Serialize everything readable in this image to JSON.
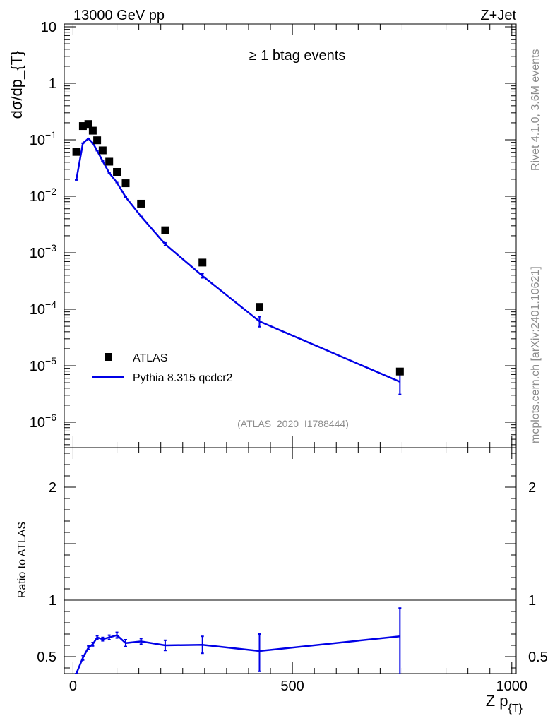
{
  "header": {
    "left": "13000 GeV pp",
    "right": "Z+Jet"
  },
  "side_texts": {
    "rivet": "Rivet 4.1.0,  3.6M events",
    "mcplots": "mcplots.cern.ch [arXiv:2401.10621]"
  },
  "main": {
    "annotation": "≥ 1 btag events",
    "analysis_label": "(ATLAS_2020_I1788444)",
    "ylabel": "dσ/dp_{T}",
    "ytick_labels": [
      {
        "base": "10",
        "exp": "",
        "value": 10
      },
      {
        "base": "1",
        "exp": "",
        "value": 1
      },
      {
        "base": "10",
        "exp": "−1",
        "value": 0.1
      },
      {
        "base": "10",
        "exp": "−2",
        "value": 0.01
      },
      {
        "base": "10",
        "exp": "−3",
        "value": 0.001
      },
      {
        "base": "10",
        "exp": "−4",
        "value": 0.0001
      },
      {
        "base": "10",
        "exp": "−5",
        "value": 1e-05
      },
      {
        "base": "10",
        "exp": "−6",
        "value": 1e-06
      }
    ],
    "legend": {
      "data_label": "ATLAS",
      "mc_label": "Pythia 8.315 qcdcr2",
      "mc_color": "#0000e6"
    }
  },
  "ratio": {
    "ylabel": "Ratio to ATLAS",
    "ytick_labels": [
      {
        "label": "0.5",
        "value": 0.5
      },
      {
        "label": "1",
        "value": 1
      },
      {
        "label": "2",
        "value": 2
      }
    ]
  },
  "xaxis": {
    "label_main": "Z p",
    "label_sub": "{T}",
    "tick_labels": [
      {
        "label": "0",
        "value": 0
      },
      {
        "label": "500",
        "value": 500
      },
      {
        "label": "1000",
        "value": 1000
      }
    ]
  },
  "chart_data": {
    "type": "scatter",
    "xlim": [
      -20,
      1010
    ],
    "main_ylim_log10": [
      -6.45,
      1.05
    ],
    "ratio_ylim": [
      0.35,
      2.35
    ],
    "series": [
      {
        "name": "ATLAS",
        "kind": "data",
        "x": [
          7.5,
          22.5,
          35,
          45,
          55,
          67.5,
          82.5,
          100,
          120,
          155,
          210,
          295,
          425,
          745
        ],
        "y": [
          0.061,
          0.175,
          0.19,
          0.145,
          0.098,
          0.065,
          0.041,
          0.027,
          0.017,
          0.0074,
          0.0025,
          0.00067,
          0.00011,
          7.9e-06
        ]
      },
      {
        "name": "Pythia 8.315 qcdcr2",
        "kind": "mc",
        "x": [
          7.5,
          22.5,
          35,
          45,
          55,
          67.5,
          82.5,
          100,
          120,
          155,
          210,
          295,
          425,
          745
        ],
        "y": [
          0.0195,
          0.087,
          0.105,
          0.088,
          0.064,
          0.042,
          0.026,
          0.0175,
          0.0097,
          0.0044,
          0.00142,
          0.00039,
          6.1e-05,
          5.2e-06
        ],
        "yerr_low": [
          0.0195,
          0.087,
          0.105,
          0.088,
          0.064,
          0.042,
          0.026,
          0.0175,
          0.0097,
          0.0044,
          0.00134,
          0.00036,
          4.9e-05,
          3.1e-06
        ],
        "yerr_high": [
          0.0195,
          0.087,
          0.105,
          0.088,
          0.064,
          0.042,
          0.026,
          0.0175,
          0.0097,
          0.0044,
          0.0015,
          0.00043,
          7.4e-05,
          7.4e-06
        ]
      }
    ],
    "ratio_series": {
      "name": "Pythia 8.315 qcdcr2 / ATLAS",
      "x": [
        7.5,
        22.5,
        35,
        45,
        55,
        67.5,
        82.5,
        100,
        120,
        155,
        210,
        295,
        425,
        745
      ],
      "y": [
        0.32,
        0.49,
        0.58,
        0.61,
        0.67,
        0.655,
        0.67,
        0.69,
        0.62,
        0.635,
        0.6,
        0.605,
        0.55,
        0.68
      ],
      "err_low": [
        0.3,
        0.47,
        0.565,
        0.595,
        0.655,
        0.64,
        0.65,
        0.665,
        0.59,
        0.61,
        0.555,
        0.53,
        0.37,
        0.35
      ],
      "err_high": [
        0.34,
        0.51,
        0.595,
        0.625,
        0.685,
        0.67,
        0.69,
        0.715,
        0.65,
        0.66,
        0.645,
        0.68,
        0.7,
        0.93
      ]
    }
  }
}
